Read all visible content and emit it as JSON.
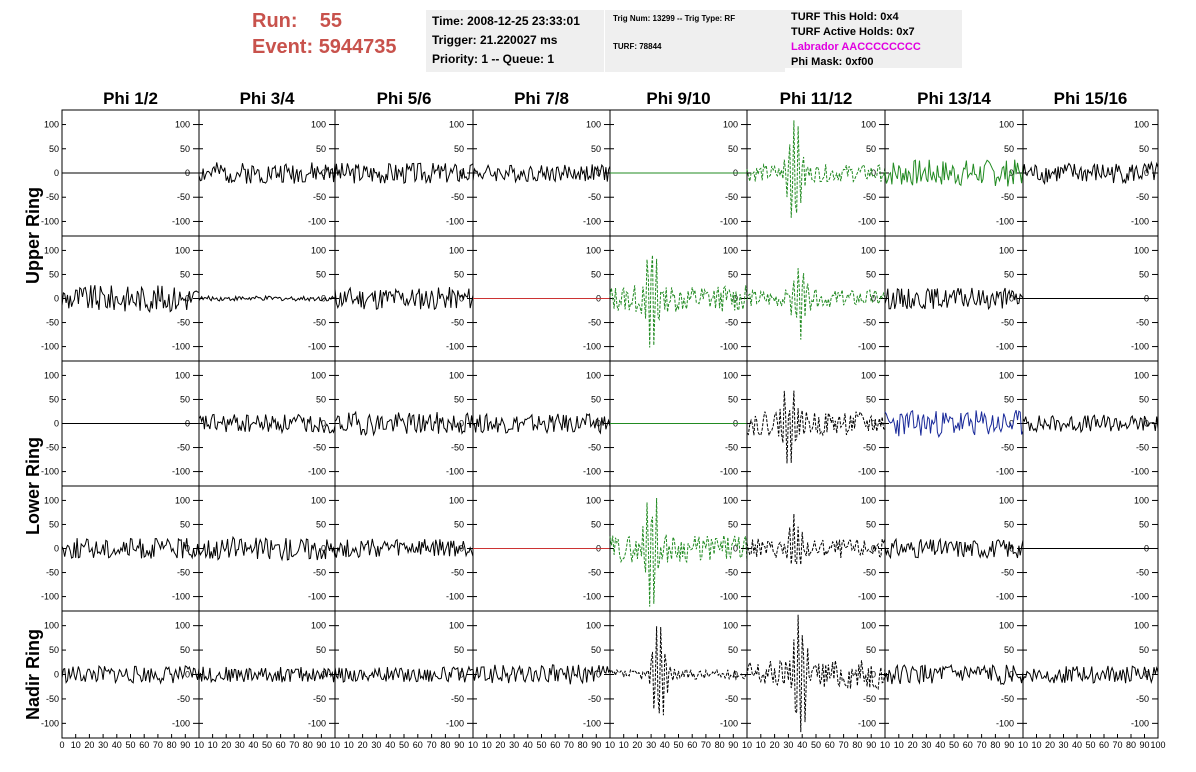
{
  "header": {
    "run_label": "Run:",
    "run_value": "55",
    "event_label": "Event:",
    "event_value": "5944735",
    "time": "Time: 2008-12-25 23:33:01",
    "trigger": "Trigger: 21.220027 ms",
    "priority": "Priority: 1 -- Queue: 1",
    "trig_num": "Trig Num: 13299 -- Trig Type: RF",
    "turf": "TURF: 78844",
    "turf_this_hold": "TURF This Hold: 0x4",
    "turf_active_holds": "TURF Active Holds: 0x7",
    "labrador": "Labrador AACCCCCCCC",
    "phi_mask": "Phi Mask: 0xf00"
  },
  "colors": {
    "run_text": "#c8524c",
    "labrador_text": "#e000e0",
    "trace_black": "#000000",
    "trace_green": "#228b22",
    "trace_red": "#cc3333",
    "trace_blue": "#1a2a9a",
    "info_box": "#efefef"
  },
  "chart_data": {
    "type": "line",
    "columns": [
      "Phi 1/2",
      "Phi 3/4",
      "Phi 5/6",
      "Phi 7/8",
      "Phi 9/10",
      "Phi 11/12",
      "Phi 13/14",
      "Phi 15/16"
    ],
    "rows": [
      "Upper Ring",
      "Lower Ring",
      "Nadir Ring"
    ],
    "ylim": [
      -130,
      130
    ],
    "yticks": [
      -100,
      -50,
      0,
      50,
      100
    ],
    "xlim": [
      0,
      100
    ],
    "xticks_bottom": [
      "0",
      "10",
      "20",
      "30",
      "40",
      "50",
      "60",
      "70",
      "80",
      "90",
      "100"
    ],
    "xtick_labels_printed": [
      "0 10 20 30 40 50 60 70 80 90 10",
      "10 20 30 40 50 60 70 80 90 10",
      "10 20 30 40 50 60 70 80 90 10",
      "10 20 30 40 50 60 70 80 90 10",
      "10 20 30 40 50 60 70 80 90 10",
      "10 20 30 40 50 60 70 80 90 10",
      "10 20 30 40 50 60 70 80 90 10",
      "10 20 30 40 50 60 70 80 90 100"
    ],
    "panels": [
      [
        {
          "s": "flat",
          "c": "black",
          "a": 0,
          "seed": 1
        },
        {
          "s": "noise",
          "c": "black",
          "a": 22,
          "seed": 2
        },
        {
          "s": "noise",
          "c": "black",
          "a": 22,
          "seed": 3
        },
        {
          "s": "noise",
          "c": "black",
          "a": 18,
          "seed": 4
        },
        {
          "s": "flat",
          "c": "green",
          "a": 0,
          "seed": 5
        },
        {
          "s": "burst",
          "c": "green",
          "a": 18,
          "peak": 110,
          "at": 34,
          "dash": true,
          "seed": 6
        },
        {
          "s": "noise",
          "c": "green",
          "a": 28,
          "seed": 7
        },
        {
          "s": "noise",
          "c": "black",
          "a": 22,
          "seed": 8
        }
      ],
      [
        {
          "s": "noise",
          "c": "black",
          "a": 28,
          "seed": 9
        },
        {
          "s": "noise",
          "c": "black",
          "a": 5,
          "seed": 10
        },
        {
          "s": "noise",
          "c": "black",
          "a": 24,
          "seed": 11
        },
        {
          "s": "flat",
          "c": "red",
          "a": 0,
          "seed": 12
        },
        {
          "s": "burst",
          "c": "green",
          "a": 28,
          "peak": 130,
          "at": 30,
          "dash": true,
          "seed": 13
        },
        {
          "s": "burst",
          "c": "green",
          "a": 18,
          "peak": 75,
          "at": 38,
          "dash": true,
          "seed": 14
        },
        {
          "s": "noise",
          "c": "black",
          "a": 22,
          "seed": 15
        },
        {
          "s": "flat",
          "c": "black",
          "a": 0,
          "seed": 16
        }
      ],
      [
        {
          "s": "flat",
          "c": "black",
          "a": 0,
          "seed": 17
        },
        {
          "s": "noise",
          "c": "black",
          "a": 20,
          "seed": 18
        },
        {
          "s": "noise",
          "c": "black",
          "a": 24,
          "seed": 19
        },
        {
          "s": "noise",
          "c": "black",
          "a": 20,
          "seed": 20
        },
        {
          "s": "flat",
          "c": "green",
          "a": 0,
          "seed": 21
        },
        {
          "s": "burst",
          "c": "black",
          "a": 25,
          "peak": 75,
          "at": 30,
          "dash": true,
          "seed": 22
        },
        {
          "s": "noise",
          "c": "blue",
          "a": 28,
          "seed": 23
        },
        {
          "s": "noise",
          "c": "black",
          "a": 18,
          "seed": 24
        }
      ],
      [
        {
          "s": "noise",
          "c": "black",
          "a": 22,
          "seed": 25
        },
        {
          "s": "noise",
          "c": "black",
          "a": 24,
          "seed": 26
        },
        {
          "s": "noise",
          "c": "black",
          "a": 20,
          "seed": 27
        },
        {
          "s": "flat",
          "c": "red",
          "a": 0,
          "seed": 28
        },
        {
          "s": "burst",
          "c": "green",
          "a": 28,
          "peak": 130,
          "at": 30,
          "dash": true,
          "seed": 29
        },
        {
          "s": "burst",
          "c": "black",
          "a": 20,
          "peak": 70,
          "at": 35,
          "dash": true,
          "seed": 30
        },
        {
          "s": "noise",
          "c": "black",
          "a": 20,
          "seed": 31
        },
        {
          "s": "flat",
          "c": "black",
          "a": 0,
          "seed": 32
        }
      ],
      [
        {
          "s": "noise",
          "c": "black",
          "a": 18,
          "seed": 33
        },
        {
          "s": "noise",
          "c": "black",
          "a": 16,
          "seed": 34
        },
        {
          "s": "noise",
          "c": "black",
          "a": 16,
          "seed": 35
        },
        {
          "s": "noise",
          "c": "black",
          "a": 20,
          "seed": 36
        },
        {
          "s": "burst",
          "c": "black",
          "a": 10,
          "peak": 110,
          "at": 36,
          "dash": true,
          "seed": 37
        },
        {
          "s": "burst",
          "c": "black",
          "a": 30,
          "peak": 130,
          "at": 38,
          "dash": true,
          "seed": 38
        },
        {
          "s": "noise",
          "c": "black",
          "a": 20,
          "seed": 39
        },
        {
          "s": "noise",
          "c": "black",
          "a": 18,
          "seed": 40
        }
      ]
    ]
  }
}
